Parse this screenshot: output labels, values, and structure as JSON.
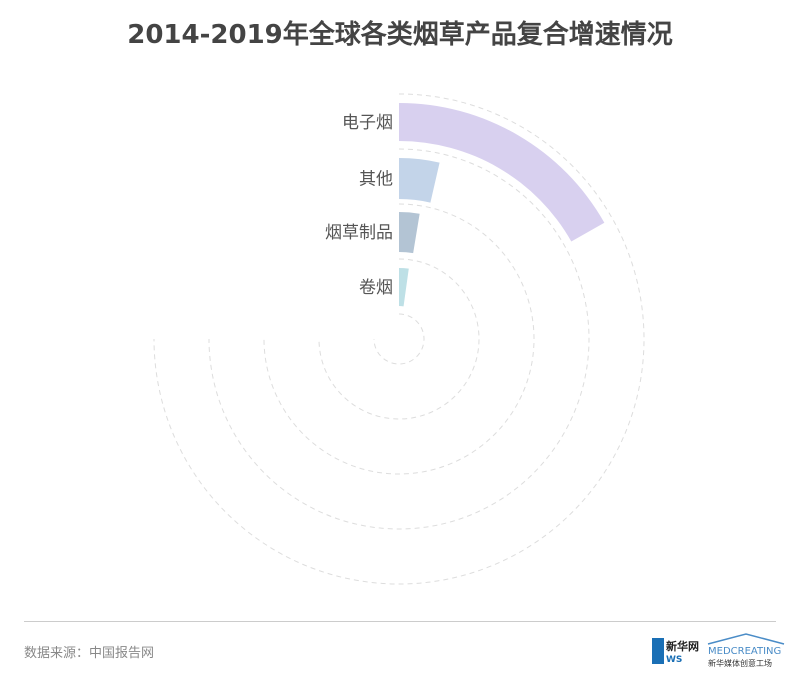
{
  "chart_data": {
    "type": "radial-bar",
    "title": "2014-2019年全球各类烟草产品复合增速情况",
    "categories": [
      "电子烟",
      "其他",
      "烟草制品",
      "卷烟"
    ],
    "values": [
      16.8,
      3.6,
      2.6,
      2.2
    ],
    "angle_max": 100,
    "colors": [
      "#d8d0ef",
      "#c3d4e9",
      "#b3c4d4",
      "#bee0e6"
    ],
    "grid": true
  },
  "footer": {
    "source": "数据来源：中国报告网"
  },
  "logos": {
    "news": "新华网 NEWS www.news.cn",
    "medcreating": "MEDCREATING 新华媒体创意工场"
  }
}
